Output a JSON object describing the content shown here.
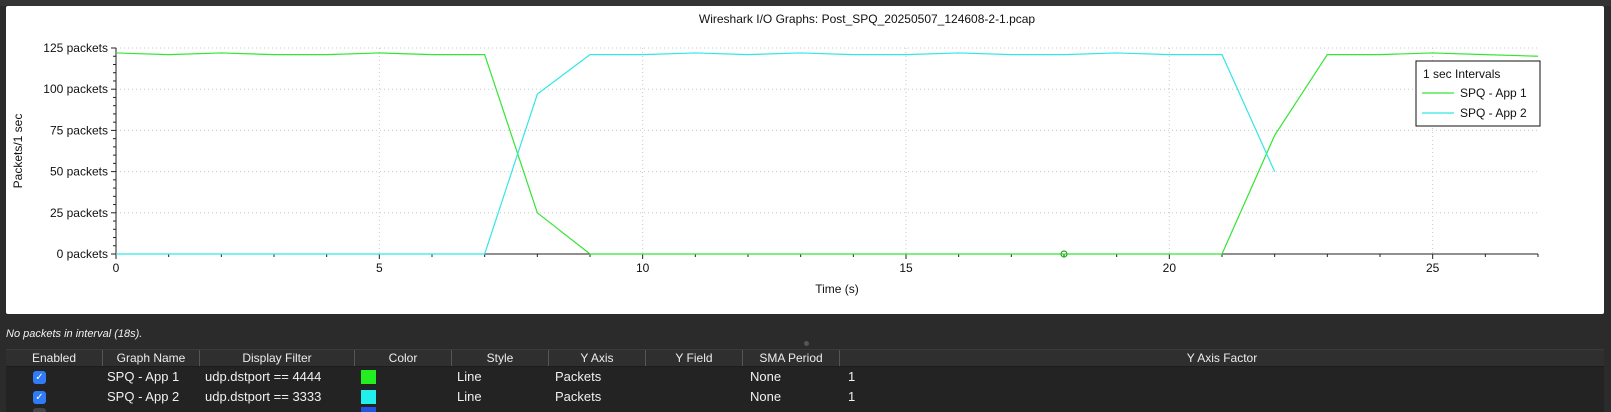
{
  "window": {
    "title": "Wireshark I/O Graphs: Post_SPQ_20250507_124608-2-1.pcap"
  },
  "status_text": "No packets in interval (18s).",
  "chart_data": {
    "type": "line",
    "title": "Wireshark I/O Graphs: Post_SPQ_20250507_124608-2-1.pcap",
    "xlabel": "Time (s)",
    "ylabel": "Packets/1 sec",
    "xlim": [
      0,
      27
    ],
    "ylim": [
      0,
      125
    ],
    "x_ticks": [
      0,
      5,
      10,
      15,
      20,
      25
    ],
    "y_ticks": [
      0,
      25,
      50,
      75,
      100,
      125
    ],
    "y_tick_labels": [
      "0 packets",
      "25 packets",
      "50 packets",
      "75 packets",
      "100 packets",
      "125 packets"
    ],
    "grid": true,
    "legend": {
      "placement": "top-right",
      "title": "1 sec Intervals"
    },
    "marker": {
      "series": "SPQ - App 1",
      "x": 18,
      "y": 0
    },
    "series": [
      {
        "name": "SPQ - App 1",
        "color": "#33e633",
        "x": [
          0,
          1,
          2,
          3,
          4,
          5,
          6,
          7,
          8,
          9,
          10,
          11,
          12,
          13,
          14,
          15,
          16,
          17,
          18,
          19,
          20,
          21,
          22,
          23,
          24,
          25,
          26,
          27
        ],
        "y": [
          122,
          121,
          122,
          121,
          121,
          122,
          121,
          121,
          25,
          0,
          0,
          0,
          0,
          0,
          0,
          0,
          0,
          0,
          0,
          0,
          0,
          0,
          72,
          121,
          121,
          122,
          121,
          120
        ]
      },
      {
        "name": "SPQ - App 2",
        "color": "#33e6e6",
        "x": [
          0,
          1,
          2,
          3,
          4,
          5,
          6,
          7,
          8,
          9,
          10,
          11,
          12,
          13,
          14,
          15,
          16,
          17,
          18,
          19,
          20,
          21,
          22
        ],
        "y": [
          0,
          0,
          0,
          0,
          0,
          0,
          0,
          0,
          97,
          121,
          121,
          122,
          121,
          122,
          121,
          121,
          122,
          121,
          121,
          122,
          121,
          121,
          50
        ]
      }
    ]
  },
  "table": {
    "headers": [
      "Enabled",
      "Graph Name",
      "Display Filter",
      "Color",
      "Style",
      "Y Axis",
      "Y Field",
      "SMA Period",
      "Y Axis Factor"
    ],
    "rows": [
      {
        "enabled": "✓",
        "name": "SPQ - App 1",
        "filter": "udp.dstport == 4444",
        "color": "#22ee22",
        "style": "Line",
        "y_axis": "Packets",
        "y_field": "",
        "sma": "None",
        "factor": "1"
      },
      {
        "enabled": "✓",
        "name": "SPQ - App 2",
        "filter": "udp.dstport == 3333",
        "color": "#22eeee",
        "style": "Line",
        "y_axis": "Packets",
        "y_field": "",
        "sma": "None",
        "factor": "1"
      }
    ]
  }
}
